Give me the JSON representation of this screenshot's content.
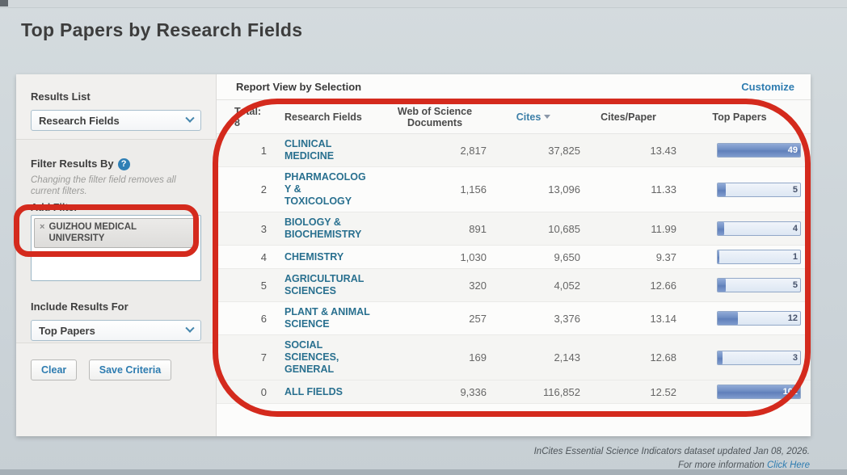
{
  "page": {
    "title": "Top Papers by Research Fields",
    "footer_line1": "InCites Essential Science Indicators dataset updated Jan 08, 2026.",
    "footer_line2_prefix": "For more information ",
    "footer_link": "Click Here"
  },
  "icons": {
    "help_glyph": "?",
    "remove_glyph": "×"
  },
  "colors": {
    "accent_blue": "#2e7cb0",
    "field_link_blue": "#29708f",
    "bar_fill_blue": "#6e8dc3",
    "annotation_red": "#d42a1d"
  },
  "sidebar": {
    "results_list_label": "Results List",
    "results_list_value": "Research Fields",
    "filter_section": {
      "title": "Filter Results By",
      "note": "Changing the filter field removes all current filters.",
      "add_filter_label": "Add Filter",
      "filter_tag": "GUIZHOU MEDICAL UNIVERSITY"
    },
    "include_results_label": "Include Results For",
    "include_results_value": "Top Papers",
    "buttons": {
      "clear": "Clear",
      "save": "Save Criteria"
    }
  },
  "report": {
    "header": "Report View by Selection",
    "customize": "Customize"
  },
  "table": {
    "total_label": "Total:",
    "total_count": "8",
    "columns": [
      "Research Fields",
      "Web of Science Documents",
      "Cites",
      "Cites/Paper",
      "Top Papers"
    ],
    "sorted_column": "Cites",
    "top_papers_bar_max": 49,
    "rows": [
      {
        "rank": "1",
        "field": "CLINICAL\nMEDICINE",
        "wos_documents": "2,817",
        "cites": "37,825",
        "cites_per_paper": "13.43",
        "top_papers": 49
      },
      {
        "rank": "2",
        "field": "PHARMACOLOG\nY &\nTOXICOLOGY",
        "wos_documents": "1,156",
        "cites": "13,096",
        "cites_per_paper": "11.33",
        "top_papers": 5
      },
      {
        "rank": "3",
        "field": "BIOLOGY &\nBIOCHEMISTRY",
        "wos_documents": "891",
        "cites": "10,685",
        "cites_per_paper": "11.99",
        "top_papers": 4
      },
      {
        "rank": "4",
        "field": "CHEMISTRY",
        "wos_documents": "1,030",
        "cites": "9,650",
        "cites_per_paper": "9.37",
        "top_papers": 1
      },
      {
        "rank": "5",
        "field": "AGRICULTURAL\nSCIENCES",
        "wos_documents": "320",
        "cites": "4,052",
        "cites_per_paper": "12.66",
        "top_papers": 5
      },
      {
        "rank": "6",
        "field": "PLANT & ANIMAL\nSCIENCE",
        "wos_documents": "257",
        "cites": "3,376",
        "cites_per_paper": "13.14",
        "top_papers": 12
      },
      {
        "rank": "7",
        "field": "SOCIAL\nSCIENCES,\nGENERAL",
        "wos_documents": "169",
        "cites": "2,143",
        "cites_per_paper": "12.68",
        "top_papers": 3
      },
      {
        "rank": "0",
        "field": "ALL FIELDS",
        "wos_documents": "9,336",
        "cites": "116,852",
        "cites_per_paper": "12.52",
        "top_papers": 102
      }
    ]
  }
}
